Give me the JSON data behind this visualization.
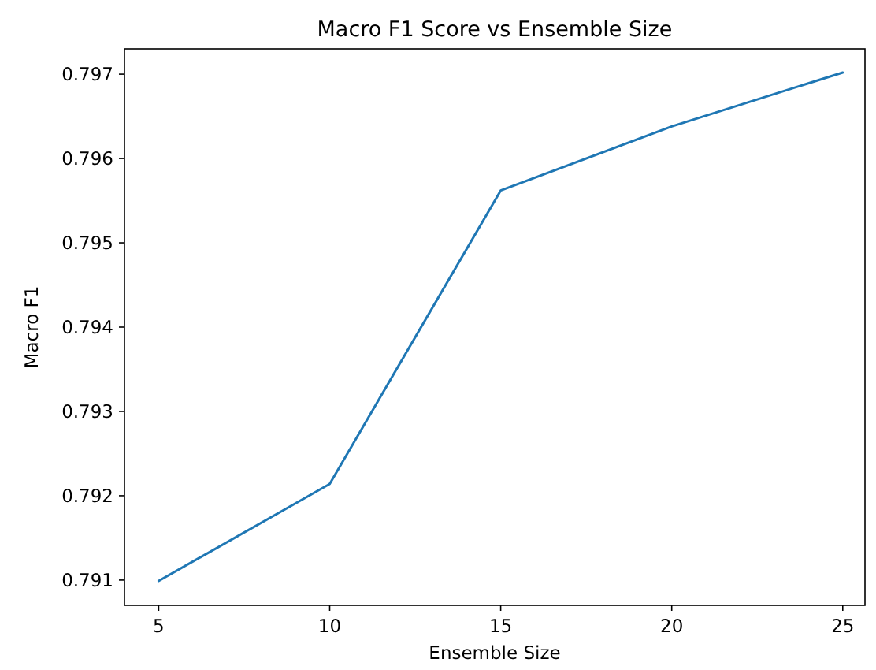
{
  "chart_data": {
    "type": "line",
    "title": "Macro F1 Score vs Ensemble Size",
    "xlabel": "Ensemble Size",
    "ylabel": "Macro F1",
    "x": [
      5,
      10,
      15,
      20,
      25
    ],
    "series": [
      {
        "color": "#1f77b4",
        "values": [
          0.79099,
          0.79214,
          0.79562,
          0.79638,
          0.79702
        ]
      }
    ],
    "xlim": [
      4,
      25.65
    ],
    "xticks": [
      5,
      10,
      15,
      20,
      25
    ],
    "ylim": [
      0.7907,
      0.7973
    ],
    "yticks": [
      0.791,
      0.792,
      0.793,
      0.794,
      0.795,
      0.796,
      0.797
    ],
    "grid": false,
    "marker": "none",
    "line_style": "solid"
  }
}
